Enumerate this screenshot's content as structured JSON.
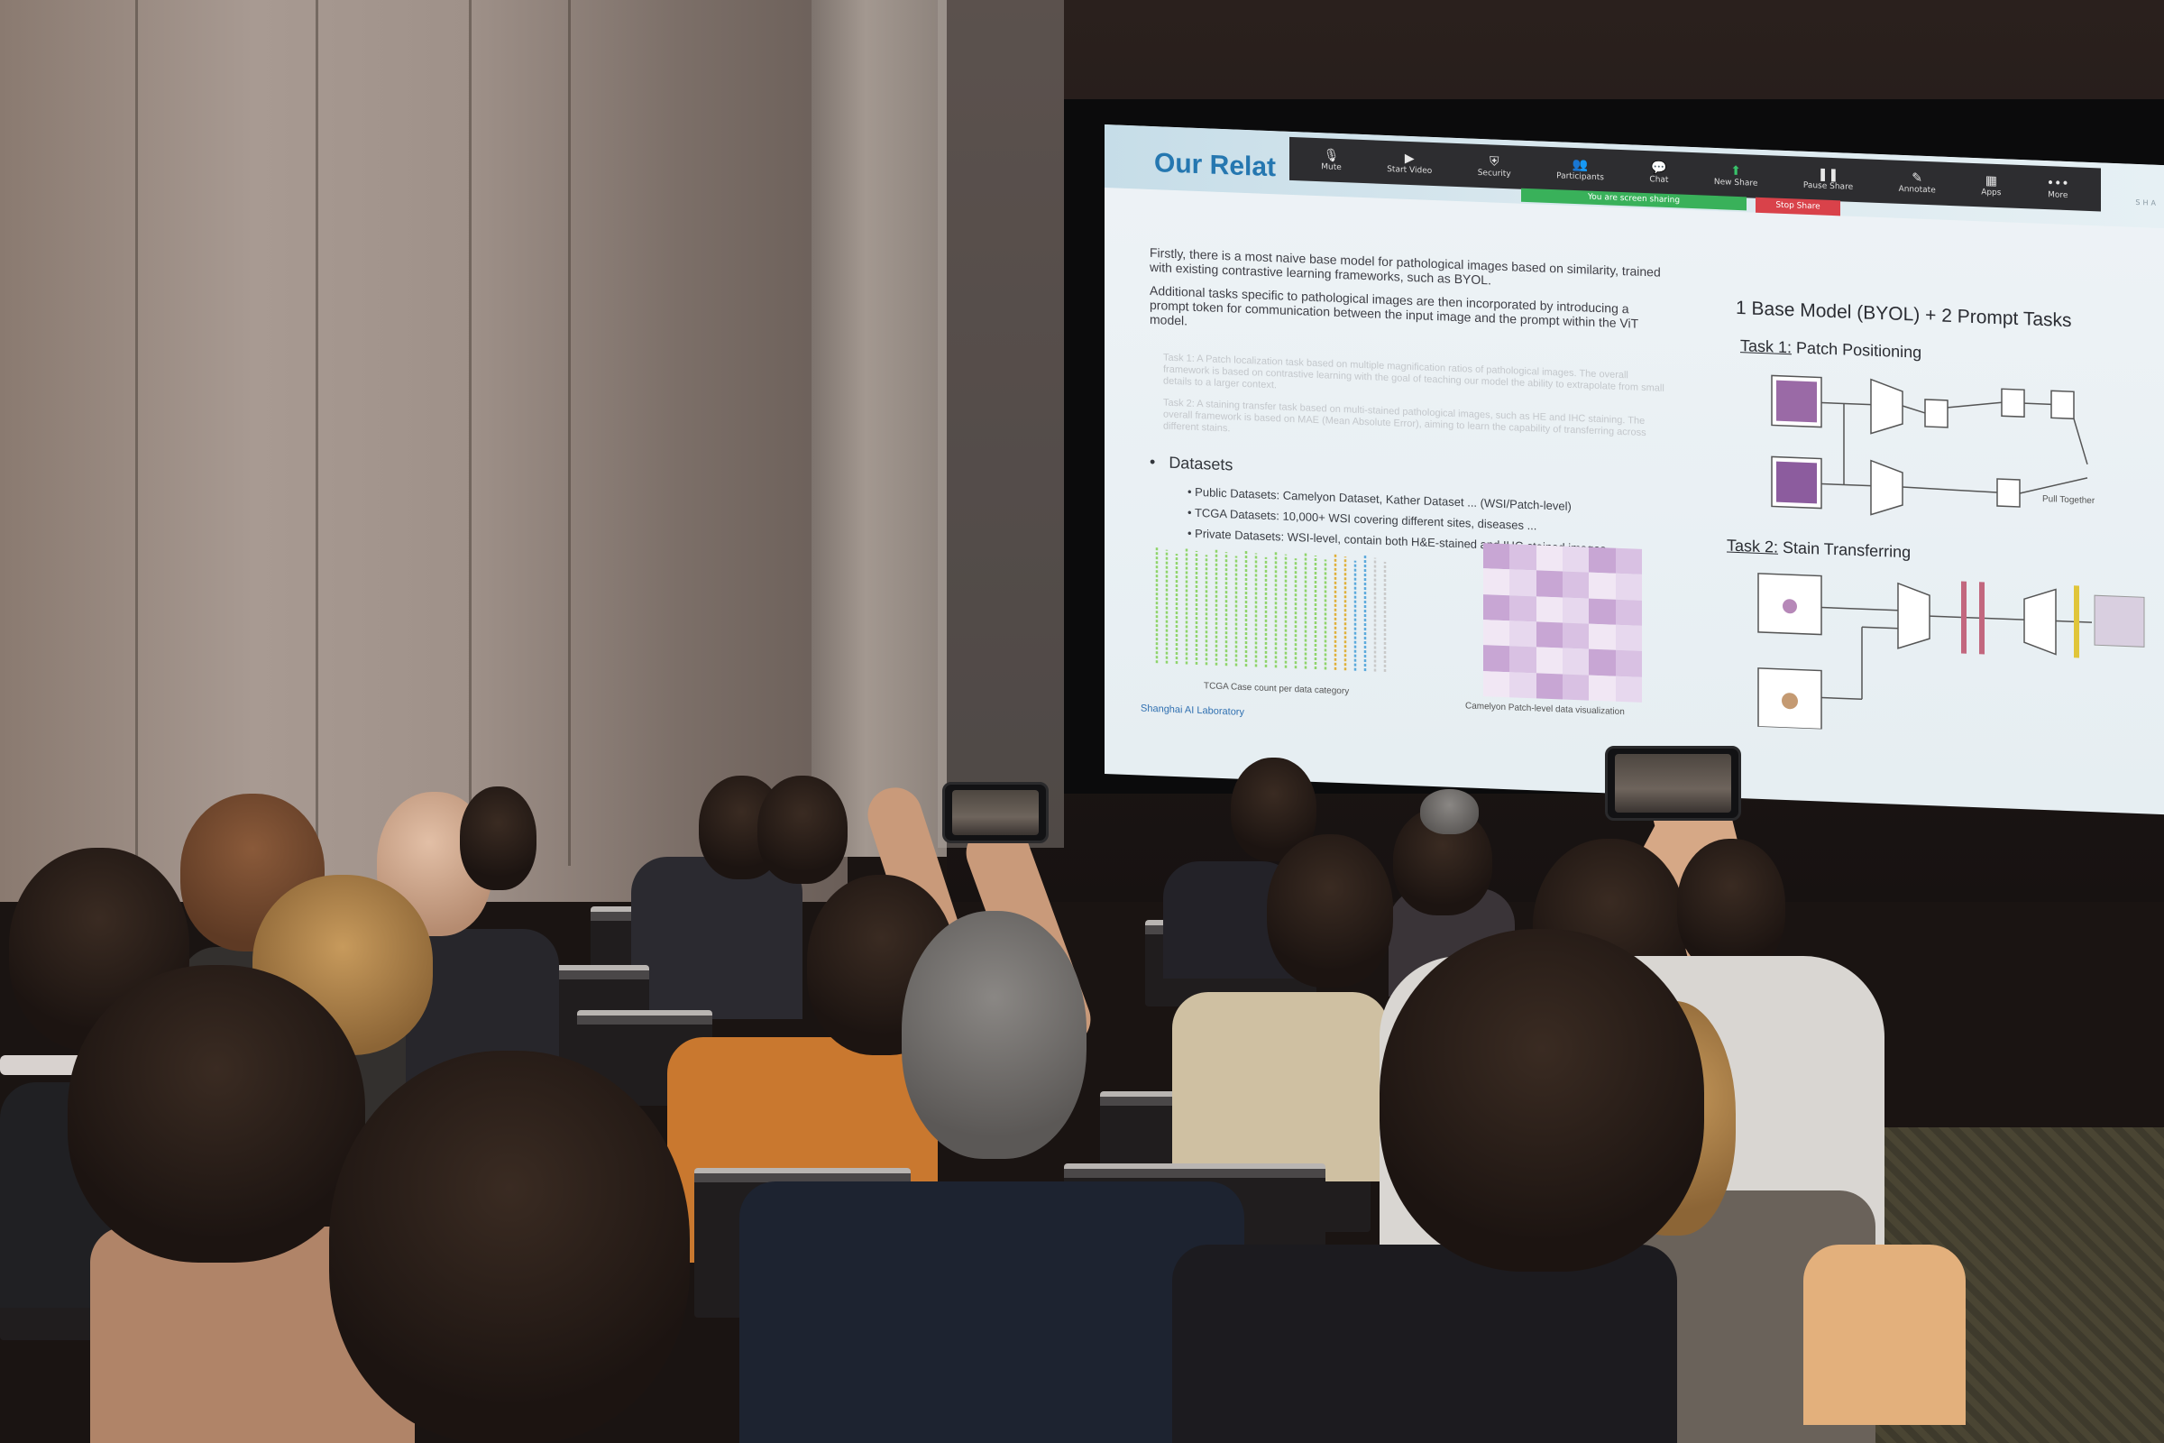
{
  "slide": {
    "title": "Our Relat",
    "zoom_toolbar": [
      {
        "icon": "microphone-icon",
        "glyph": "🎙",
        "label": "Mute"
      },
      {
        "icon": "video-camera-icon",
        "glyph": "▶",
        "label": "Start Video"
      },
      {
        "icon": "shield-icon",
        "glyph": "⛨",
        "label": "Security"
      },
      {
        "icon": "participants-icon",
        "glyph": "👥",
        "label": "Participants"
      },
      {
        "icon": "chat-icon",
        "glyph": "💬",
        "label": "Chat"
      },
      {
        "icon": "share-screen-icon",
        "glyph": "⬆",
        "label": "New Share"
      },
      {
        "icon": "pause-icon",
        "glyph": "❚❚",
        "label": "Pause Share"
      },
      {
        "icon": "pencil-icon",
        "glyph": "✎",
        "label": "Annotate"
      },
      {
        "icon": "apps-icon",
        "glyph": "▦",
        "label": "Apps"
      },
      {
        "icon": "more-icon",
        "glyph": "•••",
        "label": "More"
      }
    ],
    "sharing_notice": "You are screen sharing",
    "stop_share": "Stop Share",
    "brand": "SHA",
    "intro_paragraph_1": "Firstly, there is a most naive base model for pathological images based on similarity, trained with existing contrastive learning frameworks, such as BYOL.",
    "intro_paragraph_2": "Additional tasks specific to pathological images are then incorporated by introducing a prompt token for communication between the input image and the prompt within the ViT model.",
    "task1_faded": "Task 1: A Patch localization task based on multiple magnification ratios of pathological images. The overall framework is based on contrastive learning with the goal of teaching our model the ability to extrapolate from small details to a larger context.",
    "task2_faded": "Task 2: A staining transfer task based on multi-stained pathological images, such as HE and IHC staining. The overall framework is based on MAE (Mean Absolute Error), aiming to learn the capability of transferring across different stains.",
    "datasets_heading": "Datasets",
    "dataset_items": [
      "Public Datasets: Camelyon Dataset, Kather Dataset ... (WSI/Patch-level)",
      "TCGA Datasets: 10,000+ WSI covering different sites, diseases ...",
      "Private Datasets: WSI-level, contain both H&E-stained and IHC-stained images"
    ],
    "chart_caption": "TCGA Case count per data category",
    "mosaic_caption": "Camelyon Patch-level data visualization",
    "footer_lab": "Shanghai AI Laboratory",
    "right_heading": "1 Base Model (BYOL) + 2 Prompt Tasks",
    "task1_label_prefix": "Task 1:",
    "task1_label": "Patch Positioning",
    "task2_label_prefix": "Task 2:",
    "task2_label": "Stain Transferring",
    "pull_together": "Pull Together",
    "colors": {
      "title_blue": "#2577b0",
      "zoom_bar": "#2d2d30",
      "share_green": "#39b15a",
      "stop_red": "#d9424a"
    }
  }
}
